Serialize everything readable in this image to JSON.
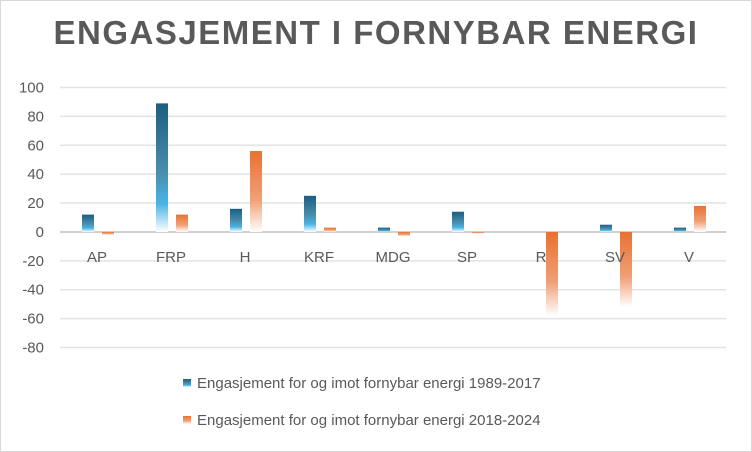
{
  "chart_data": {
    "type": "bar",
    "title": "ENGASJEMENT I FORNYBAR ENERGI",
    "categories": [
      "AP",
      "FRP",
      "H",
      "KRF",
      "MDG",
      "SP",
      "R",
      "SV",
      "V"
    ],
    "series": [
      {
        "name": "Engasjement for og imot fornybar energi 1989-2017",
        "color": "#1a5e80",
        "values": [
          12,
          89,
          16,
          25,
          3,
          14,
          0,
          5,
          3
        ]
      },
      {
        "name": "Engasjement for og imot fornybar energi 2018-2024",
        "color": "#e97132",
        "values": [
          -2,
          12,
          56,
          3,
          -3,
          -1,
          -58,
          -52,
          18
        ]
      }
    ],
    "ylim": [
      -80,
      100
    ],
    "yticks": [
      100,
      80,
      60,
      40,
      20,
      0,
      -20,
      -40,
      -60,
      -80
    ],
    "grid": true,
    "legend": "bottom"
  }
}
